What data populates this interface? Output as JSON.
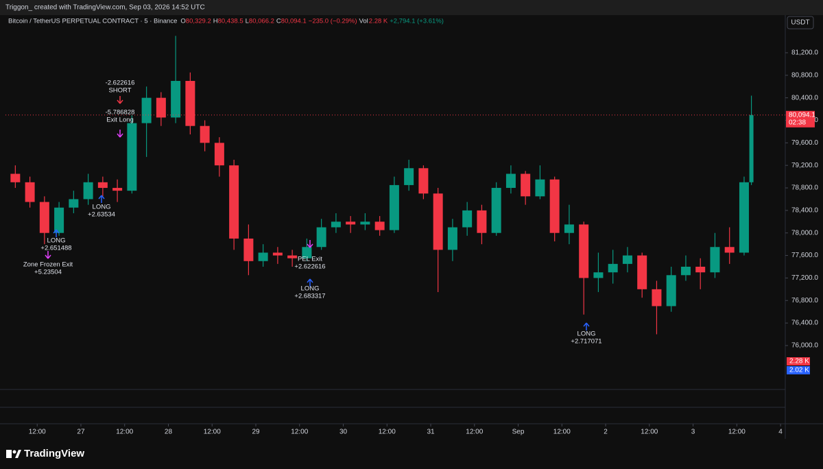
{
  "header": {
    "credit": "Triggon_ created with TradingView.com, Sep 03, 2026 14:52 UTC"
  },
  "chart_data": {
    "type": "candlestick",
    "symbol": "Bitcoin / TetherUS PERPETUAL CONTRACT · 5 · Binance",
    "ohlc": [
      {
        "label": "O",
        "value": "80,329.2"
      },
      {
        "label": "H",
        "value": "80,438.5"
      },
      {
        "label": "L",
        "value": "80,066.2"
      },
      {
        "label": "C",
        "value": "80,094.1"
      }
    ],
    "change": "−235.0 (−0.29%)",
    "volume_label": "Vol",
    "volume": "2.28 K",
    "range_change": "+2,794.1 (+3.61%)",
    "currency": "USDT",
    "last_price": {
      "value": 80094.1,
      "label": "80,094.1"
    },
    "countdown": "02:38",
    "volume_labels": [
      "2.28 K",
      "2.02 K"
    ],
    "up_color": "#089981",
    "down_color": "#f23645",
    "x": [
      6,
      10,
      14,
      18,
      22,
      26,
      30,
      34,
      38,
      42,
      46,
      50,
      54,
      58,
      62,
      66,
      70,
      74,
      78,
      82,
      86,
      90,
      94,
      98,
      102,
      106,
      110,
      114,
      118,
      122,
      126,
      130,
      134,
      138,
      142,
      146,
      150,
      154,
      158,
      162,
      166,
      170,
      174,
      178,
      182,
      186,
      190,
      194,
      198,
      202,
      206,
      208
    ],
    "open": [
      79050,
      78900,
      78550,
      78000,
      78450,
      78600,
      78900,
      78800,
      78750,
      79950,
      80400,
      80050,
      80700,
      79900,
      79600,
      79200,
      77900,
      77500,
      77650,
      77600,
      77550,
      77750,
      78100,
      78200,
      78150,
      78200,
      78050,
      78850,
      79150,
      78700,
      77700,
      78100,
      78400,
      78000,
      78800,
      79050,
      78650,
      78950,
      78000,
      78150,
      77200,
      77300,
      77450,
      77600,
      77000,
      76700,
      77250,
      77400,
      77300,
      77750,
      77650,
      78900
    ],
    "high": [
      79200,
      79000,
      78650,
      78550,
      78750,
      79050,
      79000,
      78950,
      80100,
      80600,
      80500,
      81500,
      80850,
      80000,
      79700,
      79300,
      78150,
      77800,
      77750,
      77700,
      77900,
      78250,
      78350,
      78300,
      78350,
      78300,
      79000,
      79300,
      79200,
      78800,
      78250,
      78550,
      78500,
      78900,
      79200,
      79100,
      79200,
      79000,
      78500,
      78200,
      77650,
      77700,
      77750,
      77650,
      77150,
      77400,
      77600,
      77550,
      78000,
      78100,
      79000,
      80438.5
    ],
    "low": [
      78800,
      78450,
      77800,
      77950,
      78350,
      78500,
      78650,
      78550,
      78700,
      79350,
      79900,
      79950,
      79750,
      79450,
      79000,
      77700,
      77250,
      77400,
      77450,
      77400,
      77500,
      77700,
      78000,
      78000,
      78050,
      77950,
      78000,
      78750,
      78600,
      76950,
      77500,
      77950,
      77800,
      77950,
      78700,
      78500,
      78600,
      77850,
      77800,
      76550,
      76950,
      77100,
      77300,
      76850,
      76200,
      76600,
      77150,
      77000,
      77200,
      77450,
      77600,
      78850
    ],
    "close": [
      78900,
      78550,
      78000,
      78450,
      78600,
      78900,
      78800,
      78750,
      79950,
      80400,
      80050,
      80700,
      79900,
      79600,
      79200,
      77900,
      77500,
      77650,
      77600,
      77550,
      77750,
      78100,
      78200,
      78150,
      78200,
      78050,
      78850,
      79150,
      78700,
      77700,
      78100,
      78400,
      78000,
      78800,
      79050,
      78650,
      78950,
      78000,
      78150,
      77200,
      77300,
      77450,
      77600,
      77000,
      76700,
      77250,
      77400,
      77300,
      77750,
      77650,
      78900,
      80094.1
    ],
    "xlim": [
      3.3,
      217.3
    ],
    "xticks": [
      {
        "value": 12,
        "label": "12:00"
      },
      {
        "value": 24,
        "label": "27"
      },
      {
        "value": 36,
        "label": "12:00"
      },
      {
        "value": 48,
        "label": "28"
      },
      {
        "value": 60,
        "label": "12:00"
      },
      {
        "value": 72,
        "label": "29"
      },
      {
        "value": 84,
        "label": "12:00"
      },
      {
        "value": 96,
        "label": "30"
      },
      {
        "value": 108,
        "label": "12:00"
      },
      {
        "value": 120,
        "label": "31"
      },
      {
        "value": 132,
        "label": "12:00"
      },
      {
        "value": 144,
        "label": "Sep"
      },
      {
        "value": 156,
        "label": "12:00"
      },
      {
        "value": 168,
        "label": "2"
      },
      {
        "value": 180,
        "label": "12:00"
      },
      {
        "value": 192,
        "label": "3"
      },
      {
        "value": 204,
        "label": "12:00"
      },
      {
        "value": 216,
        "label": "4"
      }
    ],
    "ylim": [
      75220,
      81650
    ],
    "yticks": [
      {
        "value": 76000,
        "label": "76,000.0"
      },
      {
        "value": 76400,
        "label": "76,400.0"
      },
      {
        "value": 76800,
        "label": "76,800.0"
      },
      {
        "value": 77200,
        "label": "77,200.0"
      },
      {
        "value": 77600,
        "label": "77,600.0"
      },
      {
        "value": 78000,
        "label": "78,000.0"
      },
      {
        "value": 78400,
        "label": "78,400.0"
      },
      {
        "value": 78800,
        "label": "78,800.0"
      },
      {
        "value": 79200,
        "label": "79,200.0"
      },
      {
        "value": 79600,
        "label": "79,600.0"
      },
      {
        "value": 80000,
        "label": "80,000.0"
      },
      {
        "value": 80400,
        "label": "80,400.0"
      },
      {
        "value": 80800,
        "label": "80,800.0"
      },
      {
        "value": 81200,
        "label": "81,200.0"
      }
    ],
    "annotations": [
      "-2.622616",
      "SHORT",
      "-5.786828",
      "Exit Long",
      "LONG",
      "+2.63534",
      "LONG",
      "+2.651488",
      "Zone Frozen Exit",
      "+5.23504",
      "PEL Exit",
      "+2.622616",
      "LONG",
      "+2.683317",
      "LONG",
      "+2.717071"
    ]
  },
  "footer": {
    "brand": "TradingView"
  }
}
